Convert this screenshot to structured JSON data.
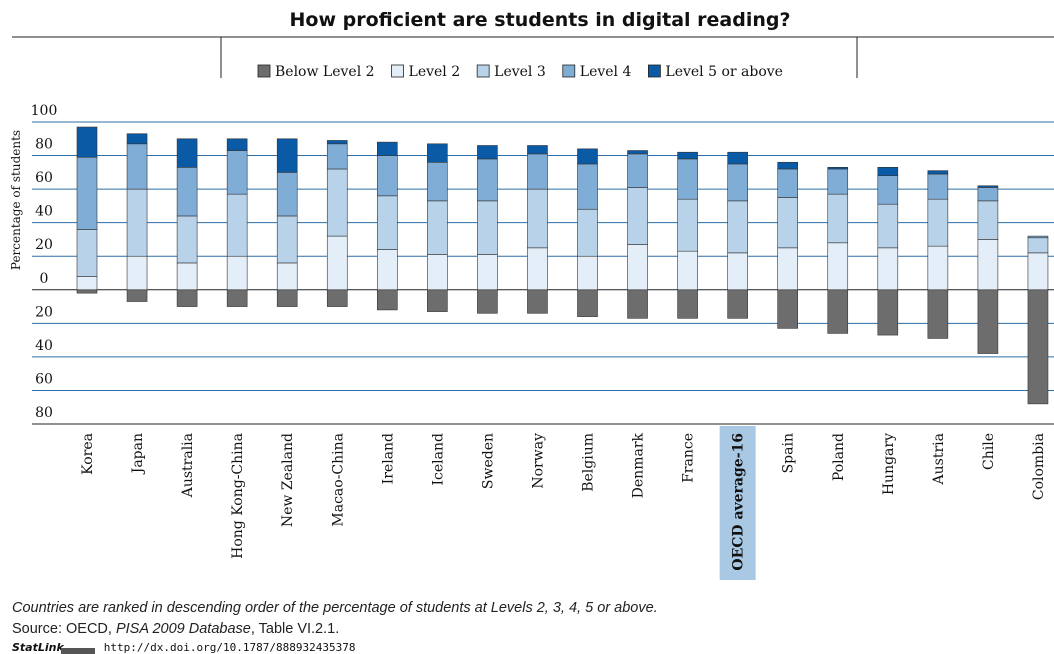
{
  "chart_data": {
    "type": "diverging-stacked-bar",
    "title": "How proficient are students in digital reading?",
    "y_label": "Percentage of students",
    "categories": [
      "Korea",
      "Japan",
      "Australia",
      "Hong Kong-China",
      "New Zealand",
      "Macao-China",
      "Ireland",
      "Iceland",
      "Sweden",
      "Norway",
      "Belgium",
      "Denmark",
      "France",
      "OECD average-16",
      "Spain",
      "Poland",
      "Hungary",
      "Austria",
      "Chile",
      "Colombia"
    ],
    "category_colors": [
      "#111",
      "#111",
      "#111",
      "#2a63a8",
      "#111",
      "#2a63a8",
      "#111",
      "#111",
      "#111",
      "#111",
      "#111",
      "#111",
      "#111",
      "#111",
      "#111",
      "#111",
      "#111",
      "#111",
      "#111",
      "#2a63a8"
    ],
    "highlight_category": 13,
    "highlight_color": "#a9c8e4",
    "series": [
      {
        "name": "Below Level 2",
        "color": "#6d6d6d",
        "values": [
          -2,
          -7,
          -10,
          -10,
          -10,
          -10,
          -12,
          -13,
          -14,
          -14,
          -16,
          -17,
          -17,
          -17,
          -23,
          -26,
          -27,
          -29,
          -38,
          -68
        ]
      },
      {
        "name": "Level 2",
        "color": "#e3eef8",
        "values": [
          8,
          20,
          16,
          20,
          16,
          32,
          24,
          21,
          21,
          25,
          20,
          27,
          23,
          22,
          25,
          28,
          25,
          26,
          30,
          22
        ]
      },
      {
        "name": "Level 3",
        "color": "#b8d2ea",
        "values": [
          28,
          40,
          28,
          37,
          28,
          40,
          32,
          32,
          32,
          35,
          28,
          34,
          31,
          31,
          30,
          29,
          26,
          28,
          23,
          9
        ]
      },
      {
        "name": "Level 4",
        "color": "#7fadd6",
        "values": [
          43,
          27,
          29,
          26,
          26,
          15,
          24,
          23,
          25,
          21,
          27,
          20,
          24,
          22,
          17,
          15,
          17,
          15,
          8,
          1
        ]
      },
      {
        "name": "Level 5 or above",
        "color": "#0b5aa6",
        "values": [
          18,
          6,
          17,
          7,
          20,
          2,
          8,
          11,
          8,
          5,
          9,
          2,
          4,
          7,
          4,
          1,
          5,
          2,
          1,
          0
        ]
      }
    ],
    "ylim": [
      -80,
      100
    ],
    "yticks": [
      100,
      80,
      60,
      40,
      20,
      0,
      {
        "value": -20,
        "label": "20"
      },
      {
        "value": -40,
        "label": "40"
      },
      {
        "value": -60,
        "label": "60"
      },
      {
        "value": -80,
        "label": "80"
      }
    ],
    "grid": true,
    "grid_color": "#2d6fa8"
  },
  "footer": {
    "note": "Countries are ranked in descending order of the percentage of students at Levels 2, 3, 4, 5 or above.",
    "source_prefix": "Source: OECD, ",
    "source_italic": "PISA 2009 Database",
    "source_suffix": ", Table VI.2.1.",
    "statlink": "StatLink",
    "url": "http://dx.doi.org/10.1787/888932435378"
  }
}
